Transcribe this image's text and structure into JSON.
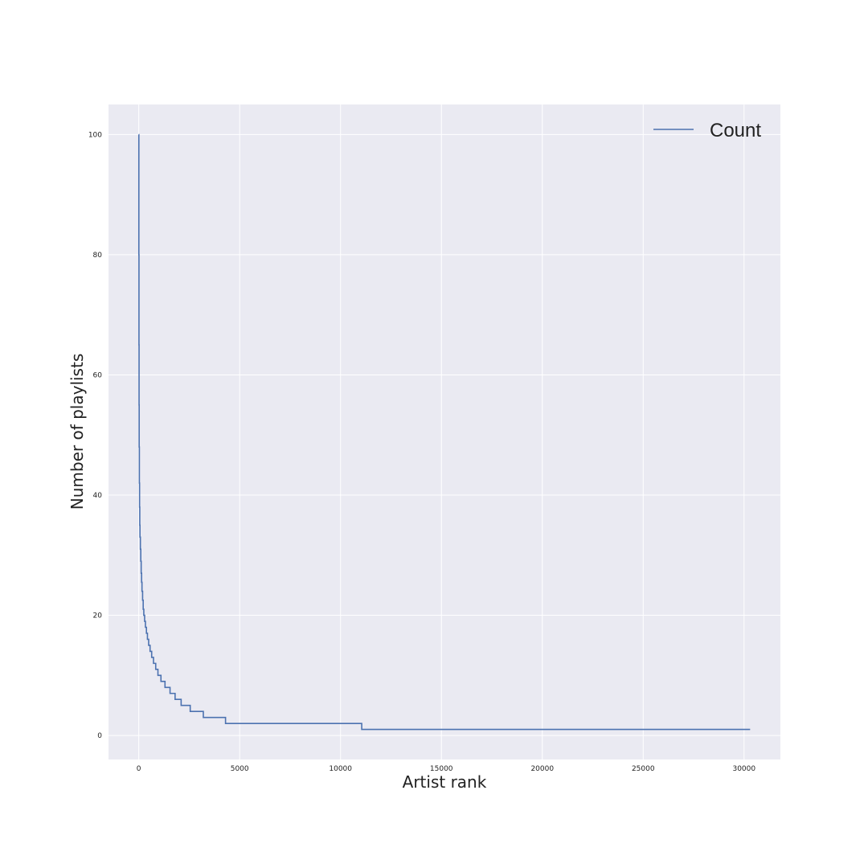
{
  "chart_data": {
    "type": "line",
    "title": "",
    "xlabel": "Artist rank",
    "ylabel": "Number of playlists",
    "xlim": [
      -1500,
      31800
    ],
    "ylim": [
      -4,
      105
    ],
    "xticks": [
      0,
      5000,
      10000,
      15000,
      20000,
      25000,
      30000
    ],
    "yticks": [
      0,
      20,
      40,
      60,
      80,
      100
    ],
    "grid": true,
    "legend_position": "top-right",
    "colors": {
      "background": "#eaeaf2",
      "grid": "#ffffff",
      "line": "#4c72b0"
    },
    "series": [
      {
        "name": "Count",
        "step": true,
        "x": [
          0,
          5,
          10,
          15,
          20,
          30,
          40,
          50,
          60,
          80,
          100,
          120,
          140,
          160,
          190,
          220,
          250,
          290,
          330,
          380,
          430,
          490,
          560,
          640,
          730,
          840,
          950,
          1100,
          1300,
          1550,
          1800,
          2100,
          2550,
          3200,
          4300,
          6400,
          11050,
          30300
        ],
        "values": [
          100,
          80,
          65,
          55,
          48,
          42,
          38,
          35,
          33,
          31,
          29,
          27,
          25.5,
          24,
          22.5,
          21,
          20,
          19,
          18,
          17,
          16,
          15,
          14,
          13,
          12,
          11,
          10,
          9,
          8,
          7,
          6,
          5,
          4,
          3,
          2,
          2,
          1,
          1
        ]
      }
    ]
  }
}
